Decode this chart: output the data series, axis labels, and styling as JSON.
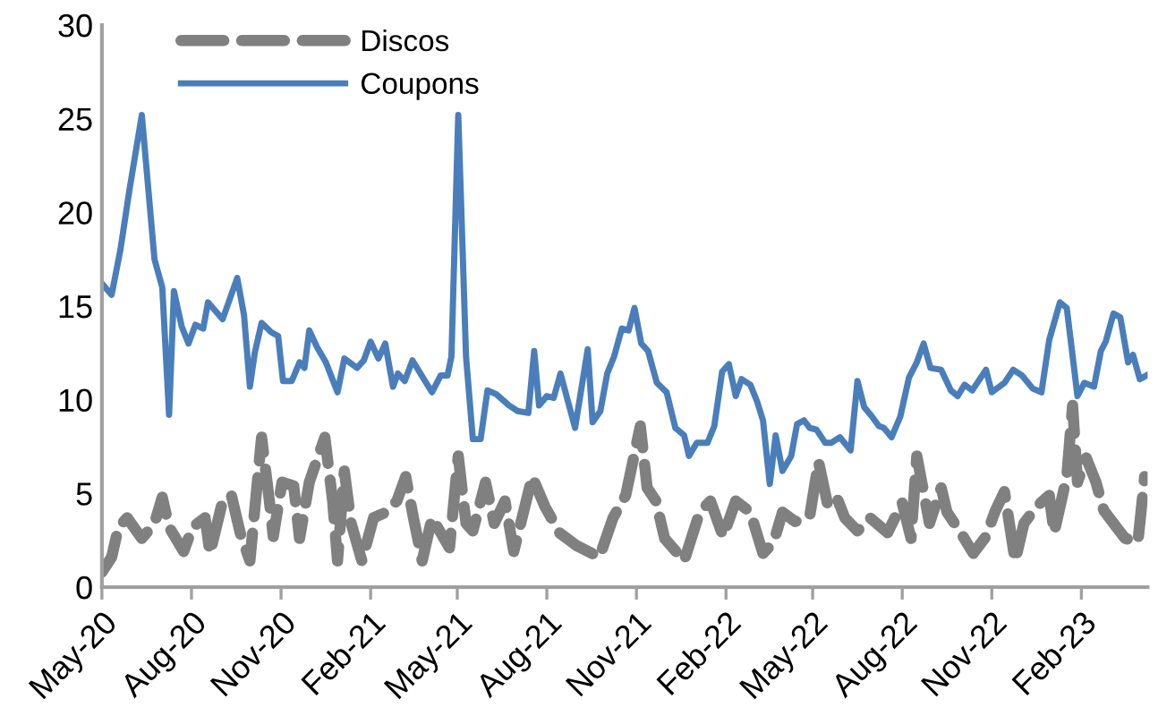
{
  "chart_data": {
    "type": "line",
    "ylim": [
      0,
      30
    ],
    "yticks": [
      0,
      5,
      10,
      15,
      20,
      25,
      30
    ],
    "xlim": [
      "2020-05-01",
      "2023-04-10"
    ],
    "xticks": [
      {
        "value": "2020-05-01",
        "label": "May-20"
      },
      {
        "value": "2020-08-01",
        "label": "Aug-20"
      },
      {
        "value": "2020-11-01",
        "label": "Nov-20"
      },
      {
        "value": "2021-02-01",
        "label": "Feb-21"
      },
      {
        "value": "2021-05-01",
        "label": "May-21"
      },
      {
        "value": "2021-08-01",
        "label": "Aug-21"
      },
      {
        "value": "2021-11-01",
        "label": "Nov-21"
      },
      {
        "value": "2022-02-01",
        "label": "Feb-22"
      },
      {
        "value": "2022-05-01",
        "label": "May-22"
      },
      {
        "value": "2022-08-01",
        "label": "Aug-22"
      },
      {
        "value": "2022-11-01",
        "label": "Nov-22"
      },
      {
        "value": "2023-02-01",
        "label": "Feb-23"
      }
    ],
    "grid": false,
    "legend": "top left",
    "marker": "none",
    "series": [
      {
        "name": "Discos",
        "color": "#808080",
        "line_style": "dashed",
        "x": [
          "2020-05-01",
          "2020-05-11",
          "2020-05-18",
          "2020-05-27",
          "2020-06-11",
          "2020-06-24",
          "2020-07-02",
          "2020-07-09",
          "2020-07-24",
          "2020-08-02",
          "2020-08-15",
          "2020-08-20",
          "2020-09-02",
          "2020-09-11",
          "2020-09-20",
          "2020-09-30",
          "2020-10-12",
          "2020-10-20",
          "2020-10-24",
          "2020-11-02",
          "2020-11-14",
          "2020-11-20",
          "2020-11-30",
          "2020-12-16",
          "2020-12-24",
          "2020-12-29",
          "2021-01-05",
          "2021-01-12",
          "2021-01-23",
          "2021-02-04",
          "2021-02-17",
          "2021-02-28",
          "2021-03-09",
          "2021-03-17",
          "2021-03-26",
          "2021-04-05",
          "2021-04-23",
          "2021-05-02",
          "2021-05-10",
          "2021-05-17",
          "2021-05-30",
          "2021-06-08",
          "2021-06-19",
          "2021-06-28",
          "2021-07-08",
          "2021-07-17",
          "2021-07-30",
          "2021-08-14",
          "2021-09-01",
          "2021-09-24",
          "2021-10-08",
          "2021-10-21",
          "2021-11-05",
          "2021-11-12",
          "2021-11-21",
          "2021-11-30",
          "2021-12-20",
          "2022-01-05",
          "2022-01-16",
          "2022-01-29",
          "2022-02-11",
          "2022-02-26",
          "2022-03-11",
          "2022-03-22",
          "2022-03-31",
          "2022-04-13",
          "2022-04-28",
          "2022-05-07",
          "2022-05-16",
          "2022-05-25",
          "2022-06-03",
          "2022-06-16",
          "2022-06-29",
          "2022-07-17",
          "2022-08-01",
          "2022-08-10",
          "2022-08-16",
          "2022-08-29",
          "2022-09-10",
          "2022-09-16",
          "2022-09-29",
          "2022-10-13",
          "2022-10-26",
          "2022-11-04",
          "2022-11-14",
          "2022-11-25",
          "2022-12-04",
          "2022-12-17",
          "2022-12-30",
          "2023-01-04",
          "2023-01-17",
          "2023-01-23",
          "2023-01-28",
          "2023-02-06",
          "2023-02-16",
          "2023-02-24",
          "2023-03-09",
          "2023-03-18",
          "2023-03-31",
          "2023-04-07"
        ],
        "values": [
          0.8,
          1.6,
          3.2,
          3.7,
          2.6,
          3.4,
          4.8,
          3.2,
          1.9,
          3.2,
          3.7,
          1.8,
          4.6,
          4.9,
          2.9,
          1.4,
          8.0,
          4.6,
          2.7,
          5.6,
          5.4,
          2.6,
          5.6,
          8.0,
          4.6,
          1.4,
          6.2,
          3.4,
          1.4,
          3.7,
          4.0,
          4.6,
          5.9,
          3.7,
          1.4,
          3.7,
          2.1,
          7.0,
          3.4,
          3.0,
          5.6,
          3.4,
          4.6,
          1.9,
          4.0,
          5.9,
          4.3,
          2.9,
          2.2,
          1.6,
          3.7,
          4.9,
          8.6,
          5.3,
          4.6,
          2.6,
          1.4,
          4.0,
          4.6,
          2.7,
          4.6,
          4.0,
          1.8,
          2.4,
          4.0,
          3.5,
          3.8,
          6.7,
          4.5,
          4.9,
          3.7,
          3.0,
          3.7,
          2.9,
          4.5,
          2.6,
          7.0,
          3.4,
          5.3,
          4.0,
          3.0,
          1.8,
          2.7,
          4.0,
          5.1,
          1.4,
          3.4,
          4.3,
          4.9,
          2.9,
          5.9,
          9.7,
          5.6,
          6.9,
          5.6,
          4.1,
          3.2,
          2.6,
          2.4,
          5.9
        ]
      },
      {
        "name": "Coupons",
        "color": "#4a7ebb",
        "line_style": "solid",
        "x": [
          "2020-05-01",
          "2020-05-11",
          "2020-05-20",
          "2020-05-29",
          "2020-06-11",
          "2020-06-24",
          "2020-07-02",
          "2020-07-09",
          "2020-07-14",
          "2020-07-22",
          "2020-07-29",
          "2020-08-05",
          "2020-08-13",
          "2020-08-18",
          "2020-09-02",
          "2020-09-17",
          "2020-09-24",
          "2020-09-30",
          "2020-10-05",
          "2020-10-12",
          "2020-10-22",
          "2020-10-29",
          "2020-11-03",
          "2020-11-12",
          "2020-11-20",
          "2020-11-25",
          "2020-11-30",
          "2020-12-08",
          "2020-12-17",
          "2020-12-29",
          "2021-01-05",
          "2021-01-18",
          "2021-01-25",
          "2021-02-01",
          "2021-02-09",
          "2021-02-16",
          "2021-02-24",
          "2021-03-01",
          "2021-03-08",
          "2021-03-16",
          "2021-03-23",
          "2021-04-05",
          "2021-04-14",
          "2021-04-21",
          "2021-04-25",
          "2021-05-02",
          "2021-05-10",
          "2021-05-17",
          "2021-05-25",
          "2021-06-01",
          "2021-06-10",
          "2021-06-23",
          "2021-07-02",
          "2021-07-13",
          "2021-07-19",
          "2021-07-24",
          "2021-08-01",
          "2021-08-08",
          "2021-08-15",
          "2021-08-30",
          "2021-09-12",
          "2021-09-17",
          "2021-09-25",
          "2021-10-02",
          "2021-10-09",
          "2021-10-17",
          "2021-10-24",
          "2021-10-30",
          "2021-11-06",
          "2021-11-13",
          "2021-11-22",
          "2021-12-02",
          "2021-12-11",
          "2021-12-20",
          "2021-12-25",
          "2022-01-02",
          "2022-01-13",
          "2022-01-20",
          "2022-01-28",
          "2022-02-04",
          "2022-02-11",
          "2022-02-17",
          "2022-02-26",
          "2022-03-05",
          "2022-03-11",
          "2022-03-18",
          "2022-03-24",
          "2022-03-31",
          "2022-04-09",
          "2022-04-15",
          "2022-04-22",
          "2022-04-28",
          "2022-05-05",
          "2022-05-14",
          "2022-05-20",
          "2022-05-29",
          "2022-06-09",
          "2022-06-16",
          "2022-06-23",
          "2022-07-01",
          "2022-07-08",
          "2022-07-13",
          "2022-07-21",
          "2022-07-30",
          "2022-08-08",
          "2022-08-16",
          "2022-08-23",
          "2022-08-30",
          "2022-09-10",
          "2022-09-20",
          "2022-09-27",
          "2022-10-04",
          "2022-10-12",
          "2022-10-26",
          "2022-11-01",
          "2022-11-14",
          "2022-11-23",
          "2022-12-02",
          "2022-12-13",
          "2022-12-22",
          "2022-12-30",
          "2023-01-10",
          "2023-01-17",
          "2023-01-28",
          "2023-02-04",
          "2023-02-14",
          "2023-02-21",
          "2023-02-26",
          "2023-03-06",
          "2023-03-13",
          "2023-03-21",
          "2023-03-26",
          "2023-04-02",
          "2023-04-09"
        ],
        "values": [
          16.2,
          15.6,
          18.0,
          21.1,
          25.2,
          17.5,
          16.0,
          9.2,
          15.8,
          13.9,
          13.0,
          14.0,
          13.8,
          15.2,
          14.3,
          16.5,
          14.5,
          10.7,
          12.5,
          14.1,
          13.6,
          13.4,
          11.0,
          11.0,
          12.0,
          11.7,
          13.7,
          12.8,
          12.0,
          10.4,
          12.2,
          11.7,
          12.1,
          13.1,
          12.2,
          13.0,
          10.7,
          11.4,
          11.0,
          12.1,
          11.5,
          10.4,
          11.3,
          11.3,
          12.3,
          25.2,
          12.3,
          7.9,
          7.9,
          10.5,
          10.3,
          9.7,
          9.4,
          9.3,
          12.6,
          9.7,
          10.2,
          10.1,
          11.4,
          8.5,
          12.7,
          8.8,
          9.4,
          11.4,
          12.3,
          13.8,
          13.7,
          14.9,
          13.0,
          12.6,
          10.9,
          10.4,
          8.5,
          8.1,
          7.0,
          7.7,
          7.7,
          8.6,
          11.5,
          11.9,
          10.2,
          11.1,
          10.8,
          9.9,
          8.9,
          5.5,
          8.1,
          6.2,
          7.0,
          8.7,
          8.9,
          8.5,
          8.4,
          7.7,
          7.7,
          8.0,
          7.3,
          11.0,
          9.6,
          9.1,
          8.6,
          8.5,
          8.0,
          9.1,
          11.2,
          12.0,
          13.0,
          11.7,
          11.6,
          10.5,
          10.2,
          10.8,
          10.5,
          11.6,
          10.4,
          10.9,
          11.6,
          11.3,
          10.6,
          10.4,
          13.2,
          15.2,
          14.9,
          10.2,
          10.9,
          10.7,
          12.6,
          13.1,
          14.6,
          14.4,
          12.0,
          12.4,
          11.1,
          11.3
        ]
      }
    ]
  }
}
